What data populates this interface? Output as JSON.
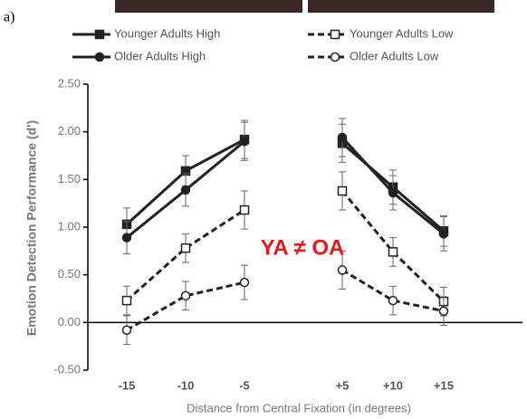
{
  "panel_label": "a)",
  "chart_data": {
    "type": "line",
    "y_label": "Emotion Detection Performance (d')",
    "x_label": "Distance from Central Fixation (in degrees)",
    "annotation": "YA ≠ OA",
    "annotation_color": "#e8171d",
    "categories": [
      "-15",
      "-10",
      "-5",
      "+5",
      "+10",
      "+15"
    ],
    "ylim": [
      -0.5,
      2.5
    ],
    "yticks": [
      {
        "value": -0.5,
        "label": "-0.50"
      },
      {
        "value": 0,
        "label": "0.00"
      },
      {
        "value": 0.5,
        "label": "0.50"
      },
      {
        "value": 1,
        "label": "1.00"
      },
      {
        "value": 1.5,
        "label": "1.50"
      },
      {
        "value": 2,
        "label": "2.00"
      },
      {
        "value": 2.5,
        "label": "2.50"
      }
    ],
    "grid": false,
    "series": [
      {
        "name": "Younger Adults High",
        "color": "#222222",
        "marker": "square",
        "filled": true,
        "dashed": false,
        "values": [
          1.03,
          1.59,
          1.92,
          1.88,
          1.42,
          0.96
        ],
        "errors": [
          0.17,
          0.16,
          0.2,
          0.2,
          0.18,
          0.16
        ]
      },
      {
        "name": "Younger Adults Low",
        "color": "#222222",
        "marker": "square",
        "filled": false,
        "dashed": true,
        "values": [
          0.23,
          0.78,
          1.18,
          1.38,
          0.74,
          0.22
        ],
        "errors": [
          0.15,
          0.15,
          0.2,
          0.2,
          0.15,
          0.15
        ]
      },
      {
        "name": "Older Adults High",
        "color": "#222222",
        "marker": "circle",
        "filled": true,
        "dashed": false,
        "values": [
          0.89,
          1.39,
          1.9,
          1.94,
          1.36,
          0.93
        ],
        "errors": [
          0.17,
          0.17,
          0.2,
          0.2,
          0.18,
          0.18
        ]
      },
      {
        "name": "Older Adults Low",
        "color": "#222222",
        "marker": "circle",
        "filled": false,
        "dashed": true,
        "values": [
          -0.08,
          0.28,
          0.42,
          0.55,
          0.23,
          0.12
        ],
        "errors": [
          0.15,
          0.15,
          0.18,
          0.2,
          0.15,
          0.15
        ]
      }
    ]
  }
}
